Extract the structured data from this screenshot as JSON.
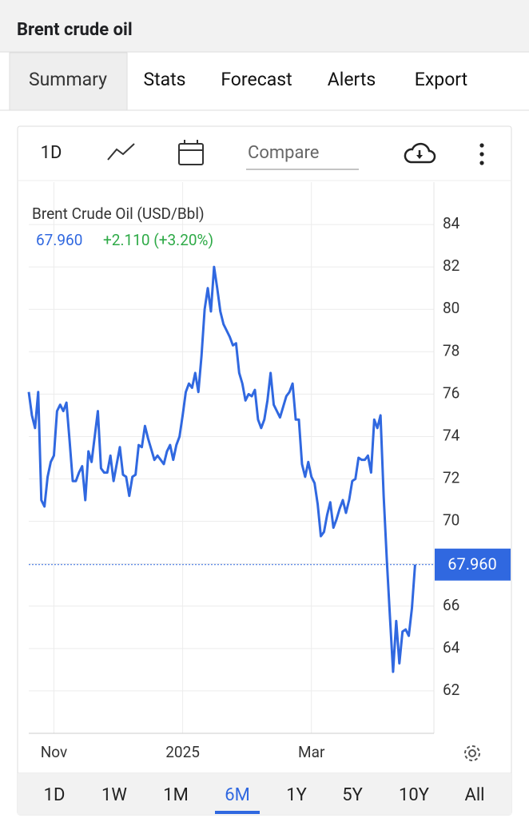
{
  "header": {
    "title": "Brent crude oil"
  },
  "tabs": [
    "Summary",
    "Stats",
    "Forecast",
    "Alerts",
    "Export"
  ],
  "selected_tab": 0,
  "toolbar": {
    "interval": "1D",
    "compare": "Compare"
  },
  "ranges": [
    "1D",
    "1W",
    "1M",
    "6M",
    "1Y",
    "5Y",
    "10Y",
    "All"
  ],
  "selected_range": 3,
  "chart_data": {
    "type": "line",
    "title": "Brent Crude Oil (USD/Bbl)",
    "color": "#3068e0",
    "last_price": {
      "value": 67.96,
      "label": "67.960"
    },
    "change": "+2.110 (+3.20%)",
    "change_color": "#2eaa47",
    "values": [
      76.1,
      75.0,
      74.4,
      76.1,
      71.0,
      70.7,
      72.1,
      72.8,
      73.1,
      75.2,
      75.5,
      75.2,
      75.6,
      73.8,
      71.9,
      71.9,
      72.3,
      72.6,
      71.0,
      73.3,
      72.8,
      74.0,
      75.2,
      72.5,
      72.3,
      72.3,
      73.1,
      71.9,
      72.7,
      73.5,
      72.2,
      72.1,
      71.2,
      72.1,
      72.2,
      73.6,
      73.5,
      74.5,
      73.9,
      73.4,
      72.9,
      73.1,
      72.9,
      72.7,
      73.3,
      73.6,
      72.9,
      73.6,
      74.0,
      75.0,
      76.1,
      76.5,
      76.3,
      77.0,
      76.1,
      77.8,
      80.0,
      81.0,
      79.9,
      82.0,
      81.0,
      79.9,
      79.3,
      79.0,
      78.7,
      78.3,
      78.4,
      77.0,
      76.5,
      75.7,
      76.0,
      75.9,
      76.2,
      74.8,
      74.4,
      74.8,
      75.7,
      77.0,
      75.5,
      75.2,
      74.9,
      75.4,
      75.9,
      76.1,
      76.5,
      74.8,
      74.8,
      72.7,
      72.1,
      72.8,
      72.1,
      71.8,
      70.8,
      69.3,
      69.5,
      70.3,
      70.9,
      69.7,
      70.1,
      70.6,
      71.0,
      70.4,
      71.0,
      71.9,
      72.0,
      73.0,
      72.9,
      72.9,
      73.1,
      72.3,
      74.8,
      74.4,
      75.0,
      71.2,
      68.2,
      65.5,
      62.9,
      65.3,
      63.3,
      64.8,
      64.9,
      64.6,
      65.9,
      67.96
    ],
    "xlim": [
      0,
      129
    ],
    "xticks": [
      {
        "value": 8,
        "label": "Nov"
      },
      {
        "value": 49,
        "label": "2025"
      },
      {
        "value": 90,
        "label": "Mar"
      }
    ],
    "ylim": [
      60,
      86
    ],
    "yticks": [
      62,
      64,
      66,
      68,
      70,
      72,
      74,
      76,
      78,
      80,
      82,
      84
    ],
    "grid": true
  }
}
